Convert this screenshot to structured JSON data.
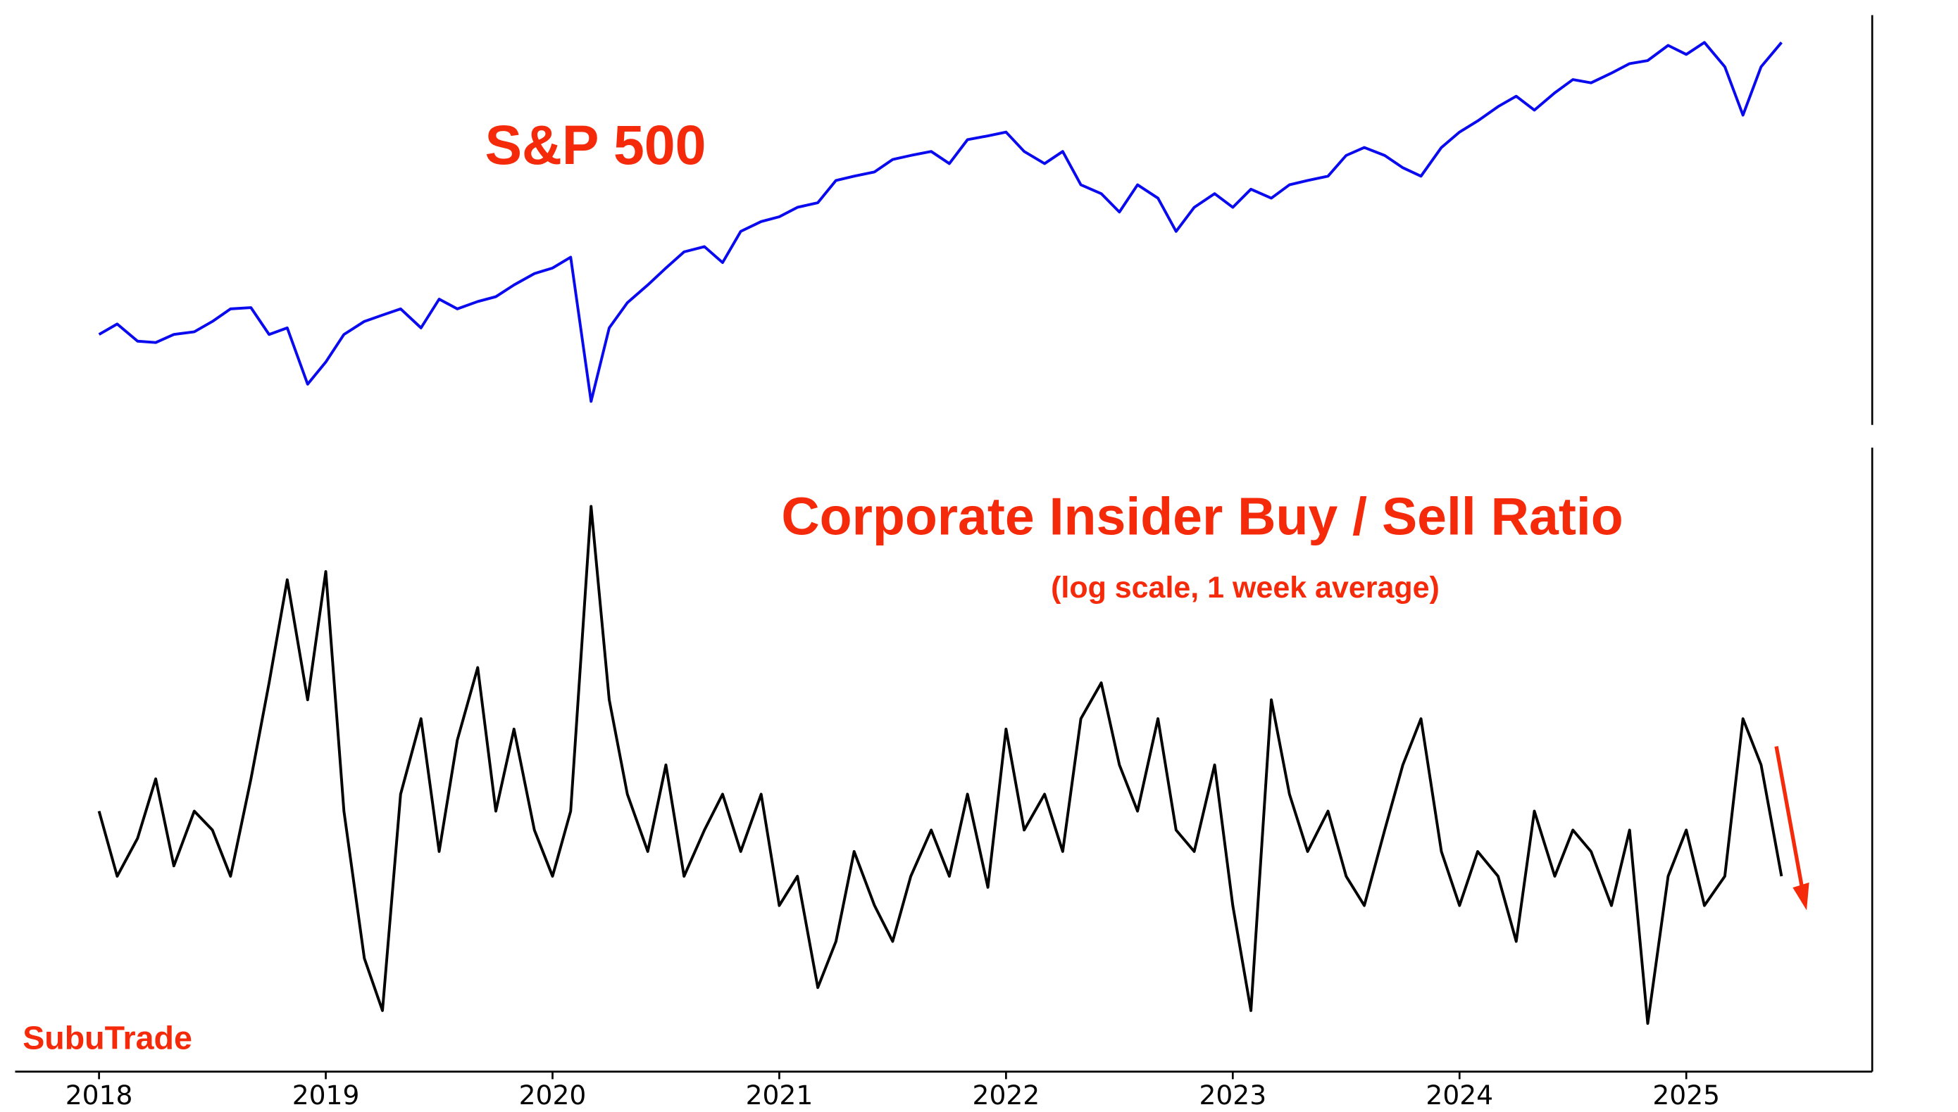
{
  "chart_data": [
    {
      "type": "line",
      "title": "S&P 500",
      "log_y": true,
      "ylim": [
        2150,
        6400
      ],
      "xlim": [
        2017.63,
        2025.82
      ],
      "x": [
        2018.0,
        2018.08,
        2018.17,
        2018.25,
        2018.33,
        2018.42,
        2018.5,
        2018.58,
        2018.67,
        2018.75,
        2018.83,
        2018.92,
        2019.0,
        2019.08,
        2019.17,
        2019.25,
        2019.33,
        2019.42,
        2019.5,
        2019.58,
        2019.67,
        2019.75,
        2019.83,
        2019.92,
        2020.0,
        2020.08,
        2020.17,
        2020.25,
        2020.33,
        2020.42,
        2020.5,
        2020.58,
        2020.67,
        2020.75,
        2020.83,
        2020.92,
        2021.0,
        2021.08,
        2021.17,
        2021.25,
        2021.33,
        2021.42,
        2021.5,
        2021.58,
        2021.67,
        2021.75,
        2021.83,
        2021.92,
        2022.0,
        2022.08,
        2022.17,
        2022.25,
        2022.33,
        2022.42,
        2022.5,
        2022.58,
        2022.67,
        2022.75,
        2022.83,
        2022.92,
        2023.0,
        2023.08,
        2023.17,
        2023.25,
        2023.33,
        2023.42,
        2023.5,
        2023.58,
        2023.67,
        2023.75,
        2023.83,
        2023.92,
        2024.0,
        2024.08,
        2024.17,
        2024.25,
        2024.33,
        2024.42,
        2024.5,
        2024.58,
        2024.67,
        2024.75,
        2024.83,
        2024.92,
        2025.0,
        2025.08,
        2025.17,
        2025.25,
        2025.33,
        2025.42
      ],
      "series": [
        {
          "name": "S&P 500",
          "color": "#0a0aee",
          "values": [
            2700,
            2780,
            2650,
            2640,
            2700,
            2720,
            2800,
            2900,
            2910,
            2700,
            2750,
            2350,
            2500,
            2700,
            2800,
            2850,
            2900,
            2750,
            2980,
            2900,
            2960,
            3000,
            3100,
            3200,
            3250,
            3350,
            2240,
            2750,
            2950,
            3100,
            3250,
            3400,
            3450,
            3300,
            3600,
            3700,
            3750,
            3850,
            3900,
            4150,
            4200,
            4250,
            4400,
            4450,
            4500,
            4350,
            4650,
            4700,
            4750,
            4500,
            4350,
            4500,
            4100,
            4000,
            3800,
            4100,
            3950,
            3600,
            3850,
            4000,
            3850,
            4050,
            3950,
            4100,
            4150,
            4200,
            4450,
            4550,
            4450,
            4300,
            4200,
            4550,
            4750,
            4900,
            5100,
            5250,
            5050,
            5300,
            5500,
            5450,
            5600,
            5750,
            5800,
            6050,
            5900,
            6100,
            5700,
            4980,
            5700,
            6100
          ]
        }
      ]
    },
    {
      "type": "line",
      "title": "Corporate Insider Buy / Sell Ratio",
      "subtitle": "(log scale, 1 week average)",
      "log_y": true,
      "ylim": [
        0.1,
        4
      ],
      "xlim": [
        2017.63,
        2025.82
      ],
      "xticks": [
        2018,
        2019,
        2020,
        2021,
        2022,
        2023,
        2024,
        2025
      ],
      "x": [
        2018.0,
        2018.08,
        2018.17,
        2018.25,
        2018.33,
        2018.42,
        2018.5,
        2018.58,
        2018.67,
        2018.75,
        2018.83,
        2018.92,
        2019.0,
        2019.08,
        2019.17,
        2019.25,
        2019.33,
        2019.42,
        2019.5,
        2019.58,
        2019.67,
        2019.75,
        2019.83,
        2019.92,
        2020.0,
        2020.08,
        2020.17,
        2020.25,
        2020.33,
        2020.42,
        2020.5,
        2020.58,
        2020.67,
        2020.75,
        2020.83,
        2020.92,
        2021.0,
        2021.08,
        2021.17,
        2021.25,
        2021.33,
        2021.42,
        2021.5,
        2021.58,
        2021.67,
        2021.75,
        2021.83,
        2021.92,
        2022.0,
        2022.08,
        2022.17,
        2022.25,
        2022.33,
        2022.42,
        2022.5,
        2022.58,
        2022.67,
        2022.75,
        2022.83,
        2022.92,
        2023.0,
        2023.08,
        2023.17,
        2023.25,
        2023.33,
        2023.42,
        2023.5,
        2023.58,
        2023.67,
        2023.75,
        2023.83,
        2023.92,
        2024.0,
        2024.08,
        2024.17,
        2024.25,
        2024.33,
        2024.42,
        2024.5,
        2024.58,
        2024.67,
        2024.75,
        2024.83,
        2024.92,
        2025.0,
        2025.08,
        2025.17,
        2025.25,
        2025.33,
        2025.42
      ],
      "series": [
        {
          "name": "Corporate Insider Buy / Sell Ratio",
          "color": "#000000",
          "values": [
            0.45,
            0.3,
            0.38,
            0.55,
            0.32,
            0.45,
            0.4,
            0.3,
            0.55,
            1.0,
            1.9,
            0.9,
            2.0,
            0.45,
            0.18,
            0.13,
            0.5,
            0.8,
            0.35,
            0.7,
            1.1,
            0.45,
            0.75,
            0.4,
            0.3,
            0.45,
            3.0,
            0.9,
            0.5,
            0.35,
            0.6,
            0.3,
            0.4,
            0.5,
            0.35,
            0.5,
            0.25,
            0.3,
            0.15,
            0.2,
            0.35,
            0.25,
            0.2,
            0.3,
            0.4,
            0.3,
            0.5,
            0.28,
            0.75,
            0.4,
            0.5,
            0.35,
            0.8,
            1.0,
            0.6,
            0.45,
            0.8,
            0.4,
            0.35,
            0.6,
            0.25,
            0.13,
            0.9,
            0.5,
            0.35,
            0.45,
            0.3,
            0.25,
            0.4,
            0.6,
            0.8,
            0.35,
            0.25,
            0.35,
            0.3,
            0.2,
            0.45,
            0.3,
            0.4,
            0.35,
            0.25,
            0.4,
            0.12,
            0.3,
            0.4,
            0.25,
            0.3,
            0.8,
            0.6,
            0.3
          ]
        }
      ]
    }
  ],
  "watermark": "SubuTrade"
}
